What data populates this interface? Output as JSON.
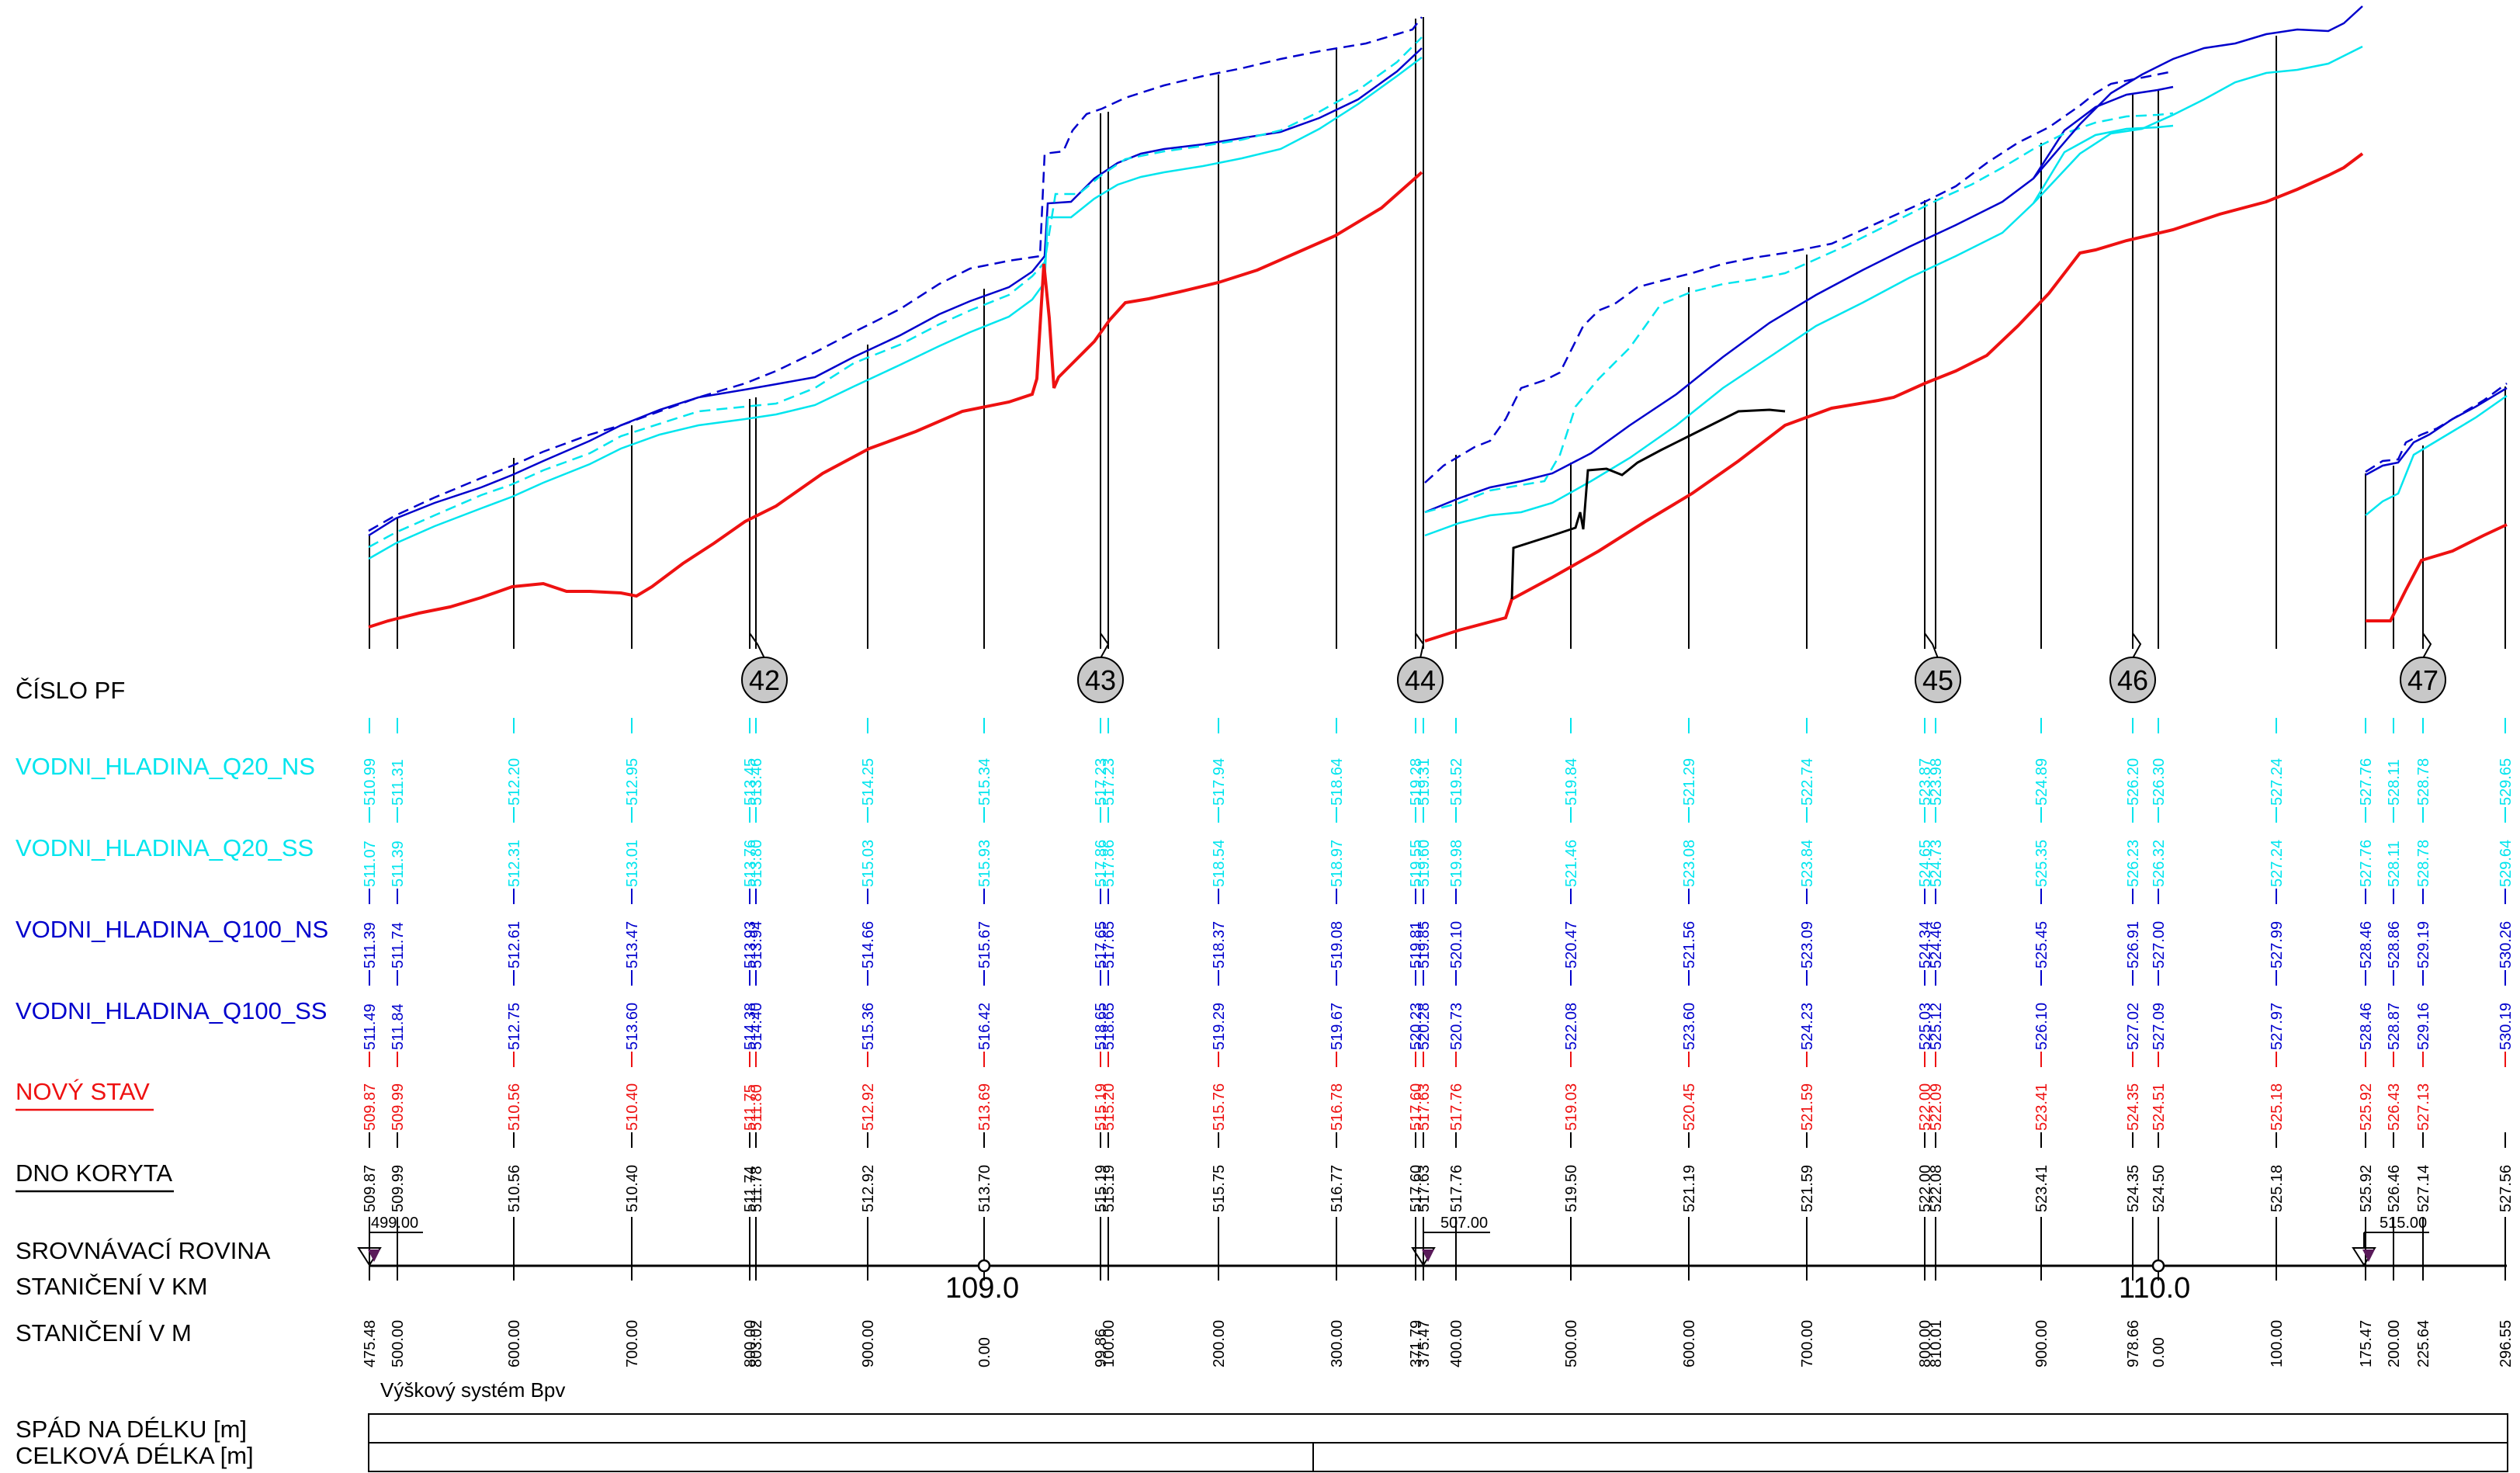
{
  "colors": {
    "q20": "#00e5ee",
    "q100": "#0000cc",
    "novy": "#ee1111",
    "black": "#000000",
    "bubble_fill": "#c8c8c8",
    "marker": "#5a1a5a"
  },
  "row_labels": {
    "cislo_pf": "ČÍSLO PF",
    "q20_ns": "VODNI_HLADINA_Q20_NS",
    "q20_ss": "VODNI_HLADINA_Q20_SS",
    "q100_ns": "VODNI_HLADINA_Q100_NS",
    "q100_ss": "VODNI_HLADINA_Q100_SS",
    "novy_stav": "NOVÝ STAV",
    "dno_koryta": "DNO KORYTA",
    "srovnavaci": "SROVNÁVACÍ ROVINA",
    "km": "STANIČENÍ V KM",
    "m": "STANIČENÍ V M",
    "spad": "SPÁD NA DÉLKU [m]",
    "celkova": "CELKOVÁ DÉLKA [m]"
  },
  "vyskovy_system": "Výškový systém Bpv",
  "km_labels": [
    "109.0",
    "110.0"
  ],
  "datums": [
    "499.00",
    "507.00",
    "515.00"
  ],
  "profiles": [
    "42",
    "43",
    "44",
    "45",
    "46",
    "47"
  ],
  "stations": [
    {
      "m": "475.48",
      "q20ns": "510.99",
      "q20ss": "511.07",
      "q100ns": "511.39",
      "q100ss": "511.49",
      "novy": "509.87",
      "dno": "509.87"
    },
    {
      "m": "500.00",
      "q20ns": "511.31",
      "q20ss": "511.39",
      "q100ns": "511.74",
      "q100ss": "511.84",
      "novy": "509.99",
      "dno": "509.99"
    },
    {
      "m": "600.00",
      "q20ns": "512.20",
      "q20ss": "512.31",
      "q100ns": "512.61",
      "q100ss": "512.75",
      "novy": "510.56",
      "dno": "510.56"
    },
    {
      "m": "700.00",
      "q20ns": "512.95",
      "q20ss": "513.01",
      "q100ns": "513.47",
      "q100ss": "513.60",
      "novy": "510.40",
      "dno": "510.40"
    },
    {
      "m": "800.00",
      "q20ns": "513.45",
      "q20ss": "513.76",
      "q100ns": "513.93",
      "q100ss": "514.38",
      "novy": "511.75",
      "dno": "511.74"
    },
    {
      "m": "803.02",
      "q20ns": "513.46",
      "q20ss": "513.80",
      "q100ns": "513.94",
      "q100ss": "514.40",
      "novy": "511.80",
      "dno": "511.78"
    },
    {
      "m": "900.00",
      "q20ns": "514.25",
      "q20ss": "515.03",
      "q100ns": "514.66",
      "q100ss": "515.36",
      "novy": "512.92",
      "dno": "512.92"
    },
    {
      "m": "0.00",
      "q20ns": "515.34",
      "q20ss": "515.93",
      "q100ns": "515.67",
      "q100ss": "516.42",
      "novy": "513.69",
      "dno": "513.70"
    },
    {
      "m": "99.86",
      "q20ns": "517.23",
      "q20ss": "517.86",
      "q100ns": "517.65",
      "q100ss": "518.65",
      "novy": "515.19",
      "dno": "515.19"
    },
    {
      "m": "100.00",
      "q20ns": "517.23",
      "q20ss": "517.86",
      "q100ns": "517.65",
      "q100ss": "518.65",
      "novy": "515.20",
      "dno": "515.19"
    },
    {
      "m": "200.00",
      "q20ns": "517.94",
      "q20ss": "518.54",
      "q100ns": "518.37",
      "q100ss": "519.29",
      "novy": "515.76",
      "dno": "515.75"
    },
    {
      "m": "300.00",
      "q20ns": "518.64",
      "q20ss": "518.97",
      "q100ns": "519.08",
      "q100ss": "519.67",
      "novy": "516.78",
      "dno": "516.77"
    },
    {
      "m": "371.79",
      "q20ns": "519.28",
      "q20ss": "519.55",
      "q100ns": "519.81",
      "q100ss": "520.23",
      "novy": "517.60",
      "dno": "517.60"
    },
    {
      "m": "375.47",
      "q20ns": "519.31",
      "q20ss": "519.60",
      "q100ns": "519.85",
      "q100ss": "520.28",
      "novy": "517.63",
      "dno": "517.63"
    },
    {
      "m": "400.00",
      "q20ns": "519.52",
      "q20ss": "519.98",
      "q100ns": "520.10",
      "q100ss": "520.73",
      "novy": "517.76",
      "dno": "517.76"
    },
    {
      "m": "500.00",
      "q20ns": "519.84",
      "q20ss": "521.46",
      "q100ns": "520.47",
      "q100ss": "522.08",
      "novy": "519.03",
      "dno": "519.50"
    },
    {
      "m": "600.00",
      "q20ns": "521.29",
      "q20ss": "523.08",
      "q100ns": "521.56",
      "q100ss": "523.60",
      "novy": "520.45",
      "dno": "521.19"
    },
    {
      "m": "700.00",
      "q20ns": "522.74",
      "q20ss": "523.84",
      "q100ns": "523.09",
      "q100ss": "524.23",
      "novy": "521.59",
      "dno": "521.59"
    },
    {
      "m": "800.00",
      "q20ns": "523.87",
      "q20ss": "524.65",
      "q100ns": "524.34",
      "q100ss": "525.03",
      "novy": "522.00",
      "dno": "522.00"
    },
    {
      "m": "810.01",
      "q20ns": "523.98",
      "q20ss": "524.73",
      "q100ns": "524.46",
      "q100ss": "525.12",
      "novy": "522.09",
      "dno": "522.08"
    },
    {
      "m": "900.00",
      "q20ns": "524.89",
      "q20ss": "525.35",
      "q100ns": "525.45",
      "q100ss": "526.10",
      "novy": "523.41",
      "dno": "523.41"
    },
    {
      "m": "978.66",
      "q20ns": "526.20",
      "q20ss": "526.23",
      "q100ns": "526.91",
      "q100ss": "527.02",
      "novy": "524.35",
      "dno": "524.35"
    },
    {
      "m": "0.00",
      "q20ns": "526.30",
      "q20ss": "526.32",
      "q100ns": "527.00",
      "q100ss": "527.09",
      "novy": "524.51",
      "dno": "524.50"
    },
    {
      "m": "100.00",
      "q20ns": "527.24",
      "q20ss": "527.24",
      "q100ns": "527.99",
      "q100ss": "527.97",
      "novy": "525.18",
      "dno": "525.18"
    },
    {
      "m": "175.47",
      "q20ns": "527.76",
      "q20ss": "527.76",
      "q100ns": "528.46",
      "q100ss": "528.46",
      "novy": "525.92",
      "dno": "525.92"
    },
    {
      "m": "200.00",
      "q20ns": "528.11",
      "q20ss": "528.11",
      "q100ns": "528.86",
      "q100ss": "528.87",
      "novy": "526.43",
      "dno": "526.46"
    },
    {
      "m": "225.64",
      "q20ns": "528.78",
      "q20ss": "528.78",
      "q100ns": "529.19",
      "q100ss": "529.16",
      "novy": "527.13",
      "dno": "527.14"
    },
    {
      "m": "296.55",
      "q20ns": "529.65",
      "q20ss": "529.64",
      "q100ns": "530.26",
      "q100ss": "530.19",
      "novy": "",
      "dno": "527.56"
    }
  ]
}
